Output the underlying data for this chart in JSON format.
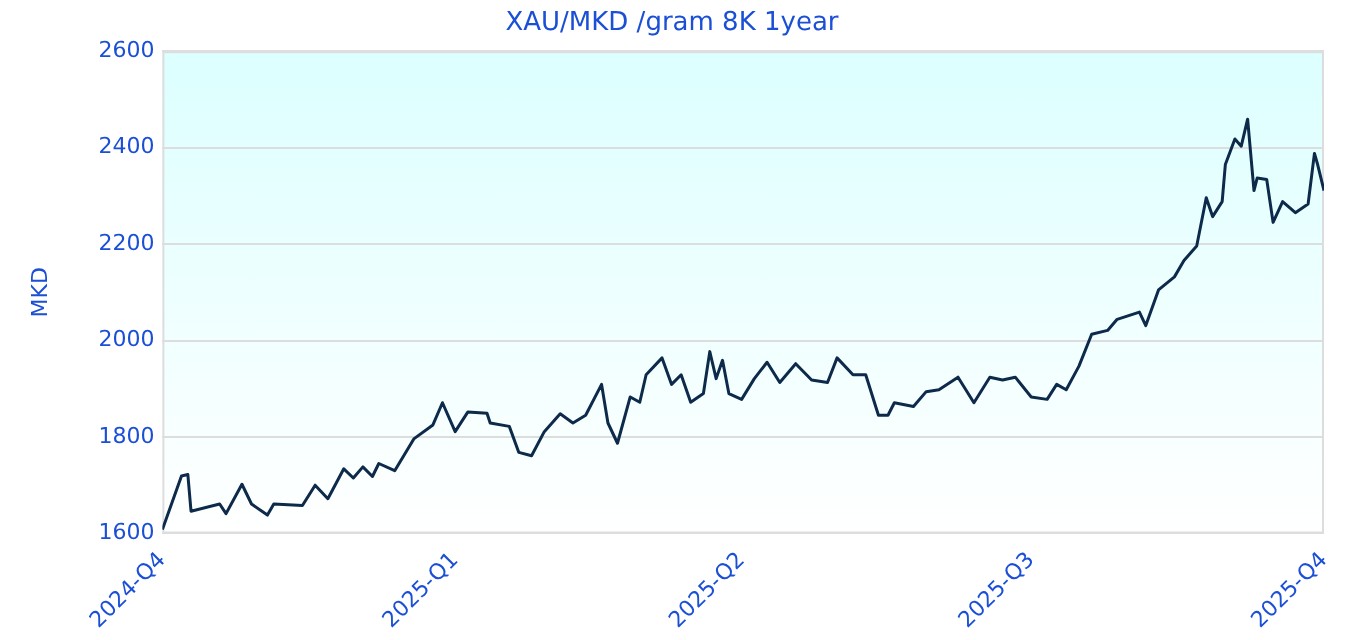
{
  "chart_data": {
    "type": "line",
    "title": "XAU/MKD /gram 8K 1year",
    "ylabel": "MKD",
    "x": [
      "2024-10-01",
      "2024-10-07",
      "2024-10-09",
      "2024-10-10",
      "2024-10-19",
      "2024-10-21",
      "2024-10-26",
      "2024-10-29",
      "2024-11-03",
      "2024-11-05",
      "2024-11-14",
      "2024-11-18",
      "2024-11-22",
      "2024-11-27",
      "2024-11-30",
      "2024-12-03",
      "2024-12-06",
      "2024-12-08",
      "2024-12-13",
      "2024-12-19",
      "2024-12-25",
      "2024-12-28",
      "2025-01-01",
      "2025-01-05",
      "2025-01-11",
      "2025-01-12",
      "2025-01-18",
      "2025-01-21",
      "2025-01-25",
      "2025-01-29",
      "2025-02-03",
      "2025-02-07",
      "2025-02-11",
      "2025-02-16",
      "2025-02-18",
      "2025-02-21",
      "2025-02-25",
      "2025-02-28",
      "2025-03-02",
      "2025-03-07",
      "2025-03-10",
      "2025-03-13",
      "2025-03-16",
      "2025-03-20",
      "2025-03-22",
      "2025-03-24",
      "2025-03-26",
      "2025-03-28",
      "2025-04-01",
      "2025-04-05",
      "2025-04-09",
      "2025-04-13",
      "2025-04-18",
      "2025-04-23",
      "2025-04-28",
      "2025-05-01",
      "2025-05-06",
      "2025-05-10",
      "2025-05-14",
      "2025-05-17",
      "2025-05-19",
      "2025-05-25",
      "2025-05-29",
      "2025-06-02",
      "2025-06-08",
      "2025-06-13",
      "2025-06-18",
      "2025-06-22",
      "2025-06-26",
      "2025-07-01",
      "2025-07-06",
      "2025-07-09",
      "2025-07-12",
      "2025-07-16",
      "2025-07-20",
      "2025-07-25",
      "2025-07-28",
      "2025-08-04",
      "2025-08-06",
      "2025-08-10",
      "2025-08-15",
      "2025-08-18",
      "2025-08-22",
      "2025-08-25",
      "2025-08-27",
      "2025-08-30",
      "2025-08-31",
      "2025-09-03",
      "2025-09-05",
      "2025-09-07",
      "2025-09-09",
      "2025-09-10",
      "2025-09-13",
      "2025-09-15",
      "2025-09-18",
      "2025-09-22",
      "2025-09-26",
      "2025-09-28",
      "2025-09-29",
      "2025-10-01"
    ],
    "series": [
      {
        "color": "#0d2a4a",
        "values": [
          1608,
          1719,
          1722,
          1646,
          1661,
          1641,
          1702,
          1661,
          1638,
          1661,
          1658,
          1700,
          1672,
          1734,
          1715,
          1738,
          1718,
          1745,
          1730,
          1796,
          1825,
          1871,
          1811,
          1852,
          1849,
          1829,
          1822,
          1768,
          1761,
          1811,
          1848,
          1829,
          1845,
          1909,
          1829,
          1787,
          1883,
          1872,
          1929,
          1964,
          1909,
          1929,
          1872,
          1890,
          1977,
          1921,
          1959,
          1890,
          1878,
          1921,
          1955,
          1913,
          1952,
          1918,
          1913,
          1964,
          1929,
          1929,
          1845,
          1845,
          1871,
          1863,
          1894,
          1898,
          1924,
          1871,
          1924,
          1918,
          1924,
          1883,
          1878,
          1909,
          1898,
          1947,
          2013,
          2021,
          2044,
          2059,
          2031,
          2105,
          2132,
          2166,
          2196,
          2296,
          2257,
          2288,
          2365,
          2418,
          2403,
          2459,
          2311,
          2337,
          2334,
          2245,
          2288,
          2265,
          2283,
          2388,
          2365,
          2311
        ]
      }
    ],
    "xlim": [
      "2024-10-01",
      "2025-10-01"
    ],
    "xticks": [
      {
        "value": "2024-10-01",
        "label": "2024-Q4"
      },
      {
        "value": "2025-01-01",
        "label": "2025-Q1"
      },
      {
        "value": "2025-04-01",
        "label": "2025-Q2"
      },
      {
        "value": "2025-07-01",
        "label": "2025-Q3"
      },
      {
        "value": "2025-10-01",
        "label": "2025-Q4"
      }
    ],
    "ylim": [
      1600,
      2600
    ],
    "yticks": [
      1600,
      1800,
      2000,
      2200,
      2400,
      2600
    ],
    "grid": "y",
    "legend": false,
    "marker": "none",
    "line_style": "solid"
  }
}
